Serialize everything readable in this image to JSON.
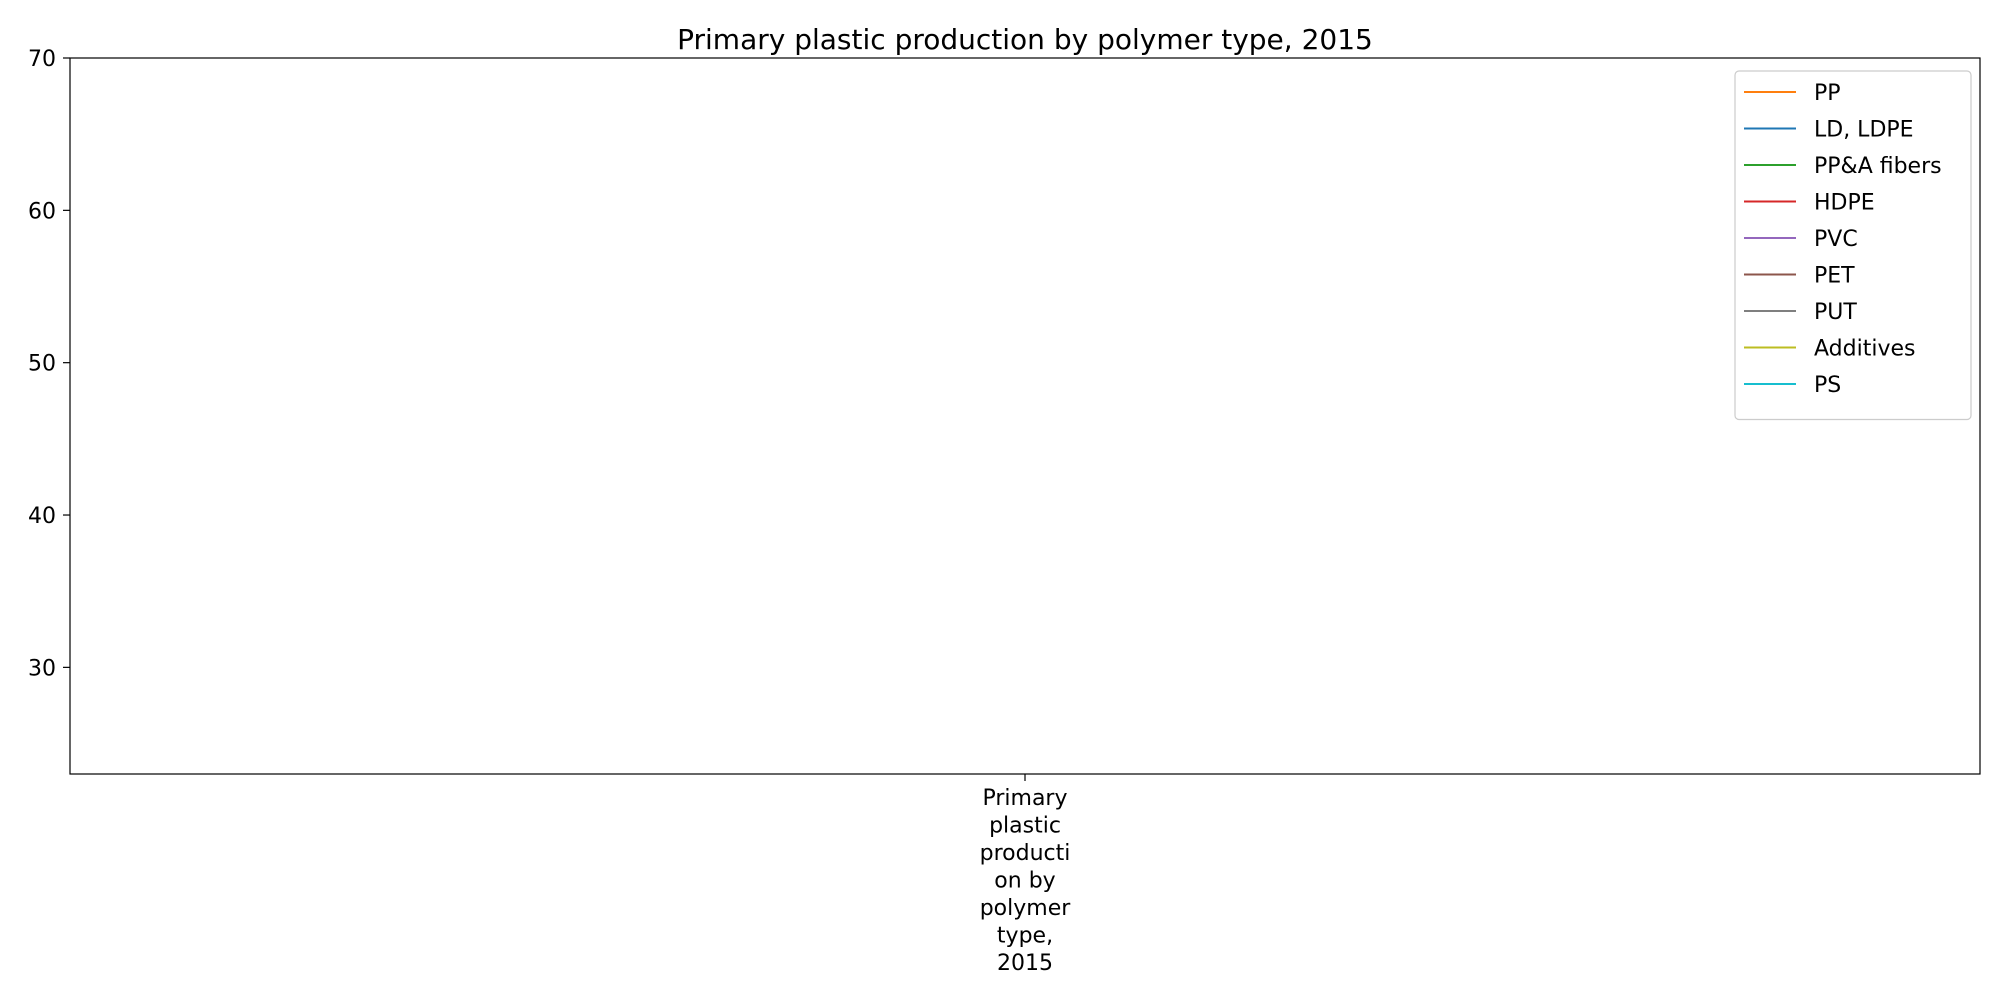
{
  "chart_data": {
    "type": "line",
    "title": "Primary plastic production by polymer type, 2015",
    "xlabel": "",
    "ylabel": "",
    "categories": [
      "Primary\nplastic\nproducti\non by\npolymer\ntype,\n2015"
    ],
    "ylim": [
      23,
      70
    ],
    "yticks": [
      30,
      40,
      50,
      60,
      70
    ],
    "grid": false,
    "legend_position": "top-right",
    "series": [
      {
        "name": "PP",
        "color": "#ff7f0e",
        "values": [
          null
        ]
      },
      {
        "name": "LD, LDPE",
        "color": "#1f77b4",
        "values": [
          null
        ]
      },
      {
        "name": "PP&A fibers",
        "color": "#2ca02c",
        "values": [
          null
        ]
      },
      {
        "name": "HDPE",
        "color": "#d62728",
        "values": [
          null
        ]
      },
      {
        "name": "PVC",
        "color": "#9467bd",
        "values": [
          null
        ]
      },
      {
        "name": "PET",
        "color": "#8c564b",
        "values": [
          null
        ]
      },
      {
        "name": "PUT",
        "color": "#7f7f7f",
        "values": [
          null
        ]
      },
      {
        "name": "Additives",
        "color": "#bcbd22",
        "values": [
          null
        ]
      },
      {
        "name": "PS",
        "color": "#17becf",
        "values": [
          null
        ]
      }
    ]
  }
}
